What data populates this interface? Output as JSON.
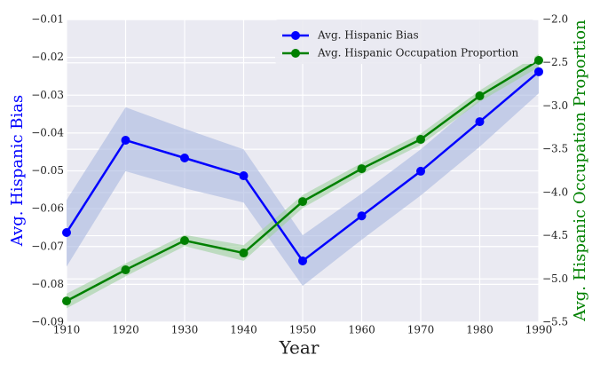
{
  "chart_data": {
    "type": "line",
    "xlabel": "Year",
    "ylabel": "Avg. Hispanic Bias",
    "y2label": "Avg. Hispanic Occupation Proportion",
    "x": [
      1910,
      1920,
      1930,
      1940,
      1950,
      1960,
      1970,
      1980,
      1990
    ],
    "xlim": [
      1910,
      1990
    ],
    "xticks": [
      1910,
      1920,
      1930,
      1940,
      1950,
      1960,
      1970,
      1980,
      1990
    ],
    "ylim": [
      -0.09,
      -0.01
    ],
    "yticks": [
      {
        "value": -0.09,
        "label": "−0.09"
      },
      {
        "value": -0.08,
        "label": "−0.08"
      },
      {
        "value": -0.07,
        "label": "−0.07"
      },
      {
        "value": -0.06,
        "label": "−0.06"
      },
      {
        "value": -0.05,
        "label": "−0.05"
      },
      {
        "value": -0.04,
        "label": "−0.04"
      },
      {
        "value": -0.03,
        "label": "−0.03"
      },
      {
        "value": -0.02,
        "label": "−0.02"
      },
      {
        "value": -0.01,
        "label": "−0.01"
      }
    ],
    "y2lim": [
      -5.5,
      -2.0
    ],
    "y2ticks": [
      {
        "value": -5.5,
        "label": "−5.5"
      },
      {
        "value": -5.0,
        "label": "−5.0"
      },
      {
        "value": -4.5,
        "label": "−4.5"
      },
      {
        "value": -4.0,
        "label": "−4.0"
      },
      {
        "value": -3.5,
        "label": "−3.5"
      },
      {
        "value": -3.0,
        "label": "−3.0"
      },
      {
        "value": -2.5,
        "label": "−2.5"
      },
      {
        "value": -2.0,
        "label": "−2.0"
      }
    ],
    "grid": true,
    "legend": "upper center",
    "series": [
      {
        "name": "Avg. Hispanic Bias",
        "color": "#0000ff",
        "band_color": "#a8b8e0",
        "values": [
          -0.0663,
          -0.0419,
          -0.0466,
          -0.0513,
          -0.0738,
          -0.0619,
          -0.0501,
          -0.037,
          -0.0238
        ],
        "band_upper": [
          -0.0577,
          -0.0332,
          -0.0389,
          -0.0443,
          -0.067,
          -0.056,
          -0.0443,
          -0.0311,
          -0.02
        ],
        "band_lower": [
          -0.0753,
          -0.0501,
          -0.0546,
          -0.0584,
          -0.0804,
          -0.0682,
          -0.0565,
          -0.0436,
          -0.0295
        ]
      },
      {
        "name": "Avg. Hispanic Occupation Proportion",
        "color": "#008000",
        "band_color": "#9fd09f",
        "axis": "y2",
        "values": [
          -5.255,
          -4.895,
          -4.556,
          -4.7,
          -4.105,
          -3.725,
          -3.386,
          -2.883,
          -2.472
        ],
        "band_upper": [
          -5.17,
          -4.82,
          -4.49,
          -4.61,
          -4.03,
          -3.66,
          -3.32,
          -2.82,
          -2.4
        ],
        "band_lower": [
          -5.34,
          -4.97,
          -4.62,
          -4.79,
          -4.18,
          -3.79,
          -3.45,
          -2.95,
          -2.55
        ]
      }
    ]
  }
}
